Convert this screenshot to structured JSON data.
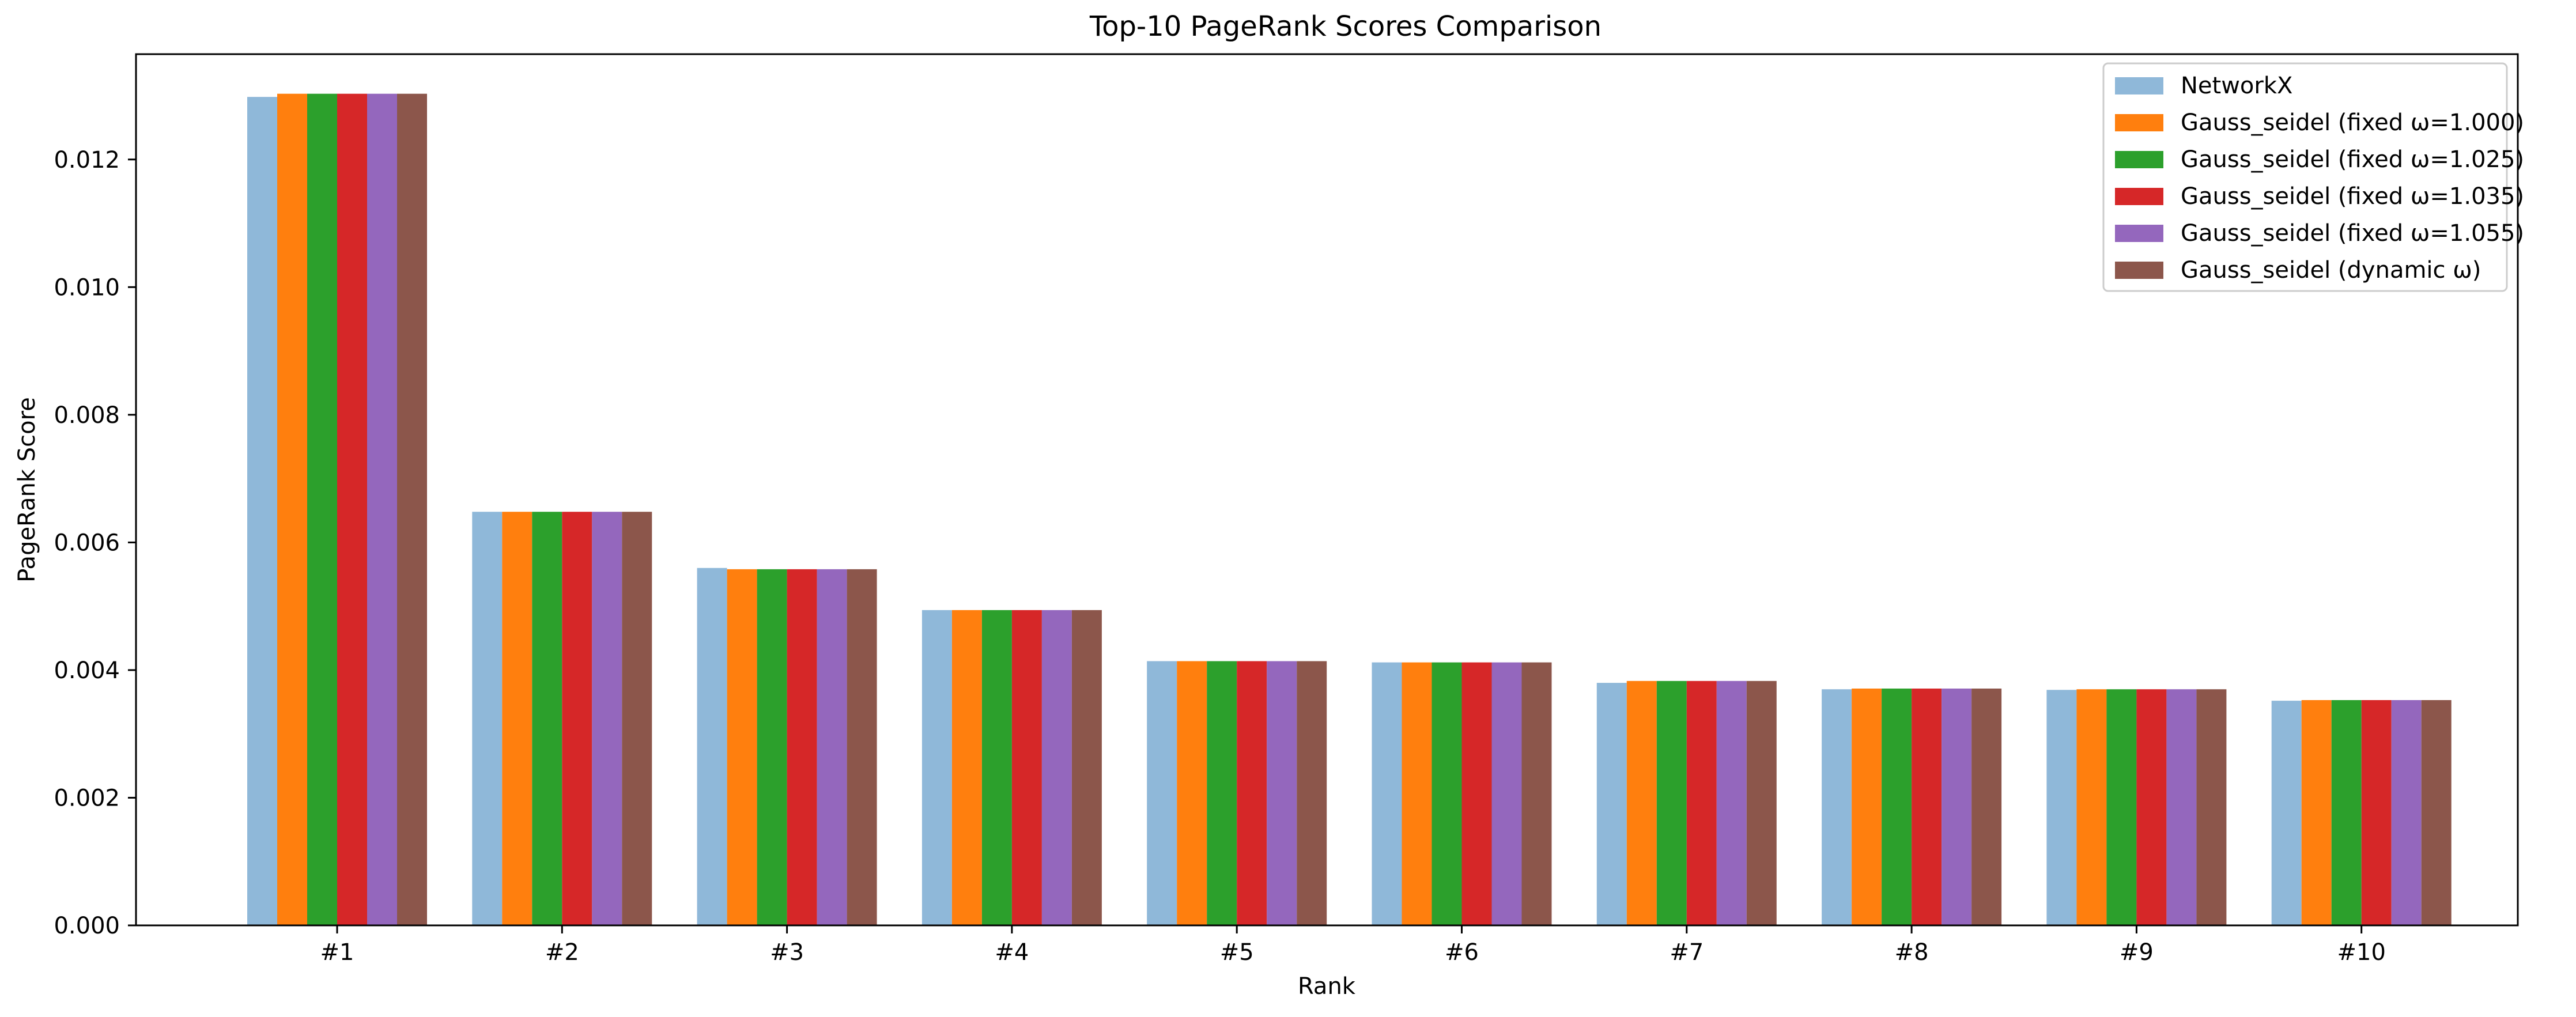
{
  "chart_data": {
    "type": "bar",
    "title": "Top-10 PageRank Scores Comparison",
    "xlabel": "Rank",
    "ylabel": "PageRank Score",
    "categories": [
      "#1",
      "#2",
      "#3",
      "#4",
      "#5",
      "#6",
      "#7",
      "#8",
      "#9",
      "#10"
    ],
    "ylim": [
      0,
      0.01365
    ],
    "yticks": [
      0.0,
      0.002,
      0.004,
      0.006,
      0.008,
      0.01,
      0.012
    ],
    "ytick_labels": [
      "0.000",
      "0.002",
      "0.004",
      "0.006",
      "0.008",
      "0.010",
      "0.012"
    ],
    "grid": false,
    "legend_position": "top-right",
    "series": [
      {
        "name": "NetworkX",
        "color": "#8fb8d9",
        "values": [
          0.01298,
          0.00648,
          0.0056,
          0.00494,
          0.00414,
          0.00412,
          0.0038,
          0.0037,
          0.00369,
          0.00352
        ]
      },
      {
        "name": "Gauss_seidel (fixed ω=1.000)",
        "color": "#ff7f0e",
        "values": [
          0.01303,
          0.00648,
          0.00558,
          0.00494,
          0.00414,
          0.00412,
          0.00383,
          0.00371,
          0.0037,
          0.00353
        ]
      },
      {
        "name": "Gauss_seidel (fixed ω=1.025)",
        "color": "#2ca02c",
        "values": [
          0.01303,
          0.00648,
          0.00558,
          0.00494,
          0.00414,
          0.00412,
          0.00383,
          0.00371,
          0.0037,
          0.00353
        ]
      },
      {
        "name": "Gauss_seidel (fixed ω=1.035)",
        "color": "#d62728",
        "values": [
          0.01303,
          0.00648,
          0.00558,
          0.00494,
          0.00414,
          0.00412,
          0.00383,
          0.00371,
          0.0037,
          0.00353
        ]
      },
      {
        "name": "Gauss_seidel (fixed ω=1.055)",
        "color": "#9467bd",
        "values": [
          0.01303,
          0.00648,
          0.00558,
          0.00494,
          0.00414,
          0.00412,
          0.00383,
          0.00371,
          0.0037,
          0.00353
        ]
      },
      {
        "name": "Gauss_seidel (dynamic ω)",
        "color": "#8c564b",
        "values": [
          0.01303,
          0.00648,
          0.00558,
          0.00494,
          0.00414,
          0.00412,
          0.00383,
          0.00371,
          0.0037,
          0.00353
        ]
      }
    ]
  }
}
